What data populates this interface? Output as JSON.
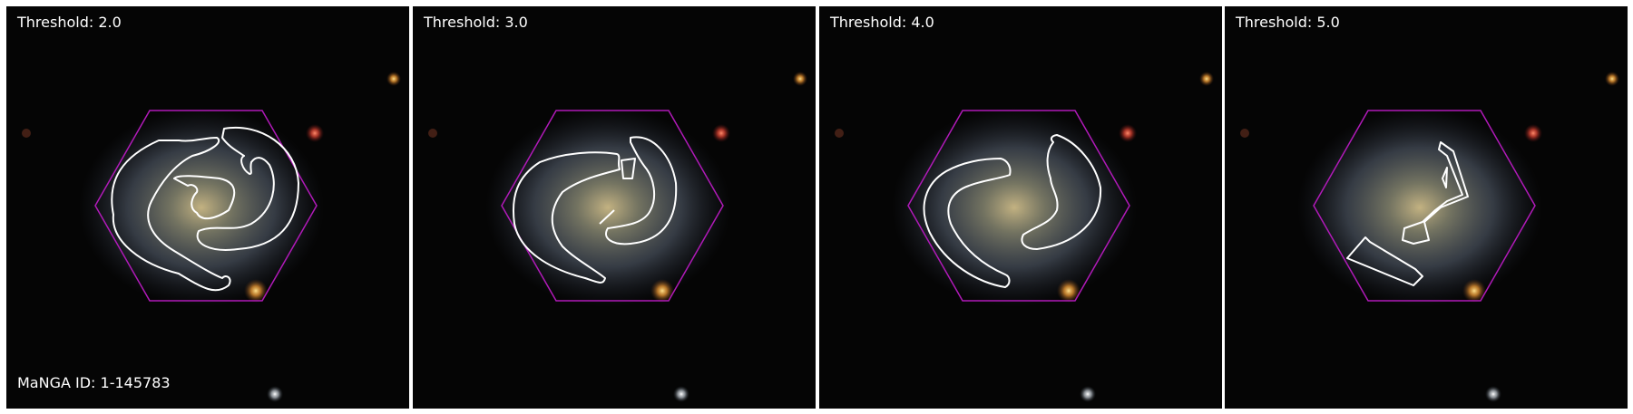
{
  "panels": [
    {
      "threshold_label": "Threshold: 2.0",
      "threshold": 2.0
    },
    {
      "threshold_label": "Threshold: 3.0",
      "threshold": 3.0
    },
    {
      "threshold_label": "Threshold: 4.0",
      "threshold": 4.0
    },
    {
      "threshold_label": "Threshold: 5.0",
      "threshold": 5.0
    }
  ],
  "galaxy_id_label": "MaNGA ID: 1-145783",
  "colors": {
    "background": "#050505",
    "hexagon": "#b01ab8",
    "contour": "#ffffff",
    "label_text": "#ffffff",
    "galaxy_core": "#cdbb88",
    "galaxy_disk": "#6d7480",
    "red_star": "#e8503a",
    "orange_star": "#f0a030",
    "white_star": "#e8ecef"
  }
}
